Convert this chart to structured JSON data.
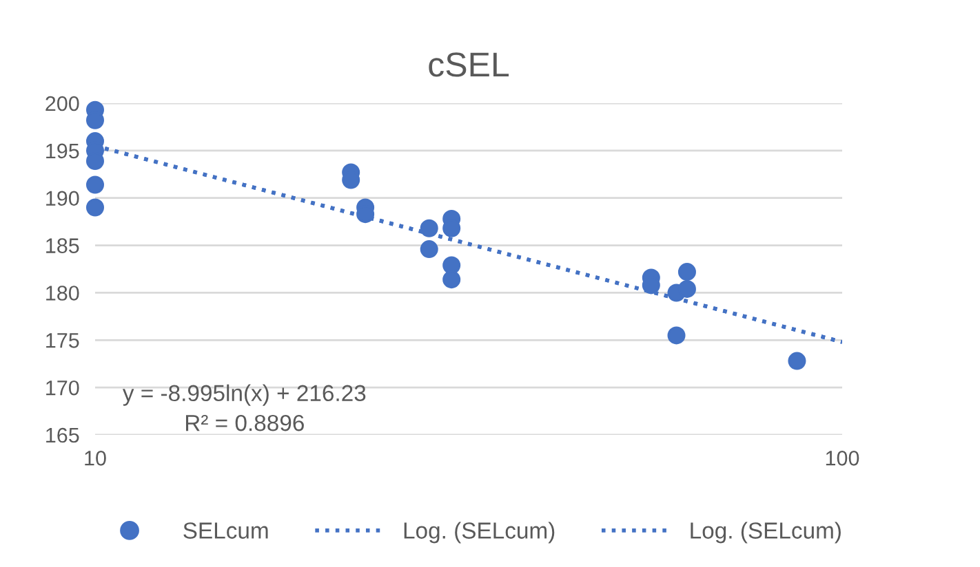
{
  "chart_data": {
    "type": "scatter",
    "title": "cSEL",
    "log": "x",
    "xlim": [
      10,
      100
    ],
    "xticks": [
      10,
      100
    ],
    "ylim": [
      165,
      200
    ],
    "yticks": [
      165,
      170,
      175,
      180,
      185,
      190,
      195,
      200
    ],
    "grid": "y",
    "legend": "bottom",
    "annotations": [
      "y = -8.995ln(x) + 216.23",
      "R² = 0.8896"
    ],
    "series": [
      {
        "name": "SELcum",
        "marker": "circle",
        "color": "#4472c4",
        "x": [
          10,
          10,
          10,
          10,
          10,
          10,
          10,
          22,
          22,
          23,
          23,
          28,
          28,
          30,
          30,
          30,
          30,
          55.5,
          55.5,
          60,
          60,
          62,
          62,
          87
        ],
        "values": [
          199.3,
          198.2,
          196,
          195,
          193.9,
          191.4,
          189,
          192.7,
          191.9,
          189,
          188.3,
          186.8,
          184.6,
          187.8,
          186.8,
          182.9,
          181.4,
          181.6,
          180.8,
          180,
          175.5,
          182.2,
          180.4,
          172.8
        ]
      },
      {
        "name": "Log. (SELcum)",
        "type": "line",
        "line_style": "dotted",
        "color": "#4472c4",
        "x": [
          10,
          100
        ],
        "values": [
          195.5,
          174.8
        ]
      },
      {
        "name": "Log. (SELcum)",
        "type": "line",
        "line_style": "dotted",
        "color": "#4472c4",
        "x": [
          10,
          100
        ],
        "values": [
          195.5,
          174.8
        ]
      }
    ]
  }
}
